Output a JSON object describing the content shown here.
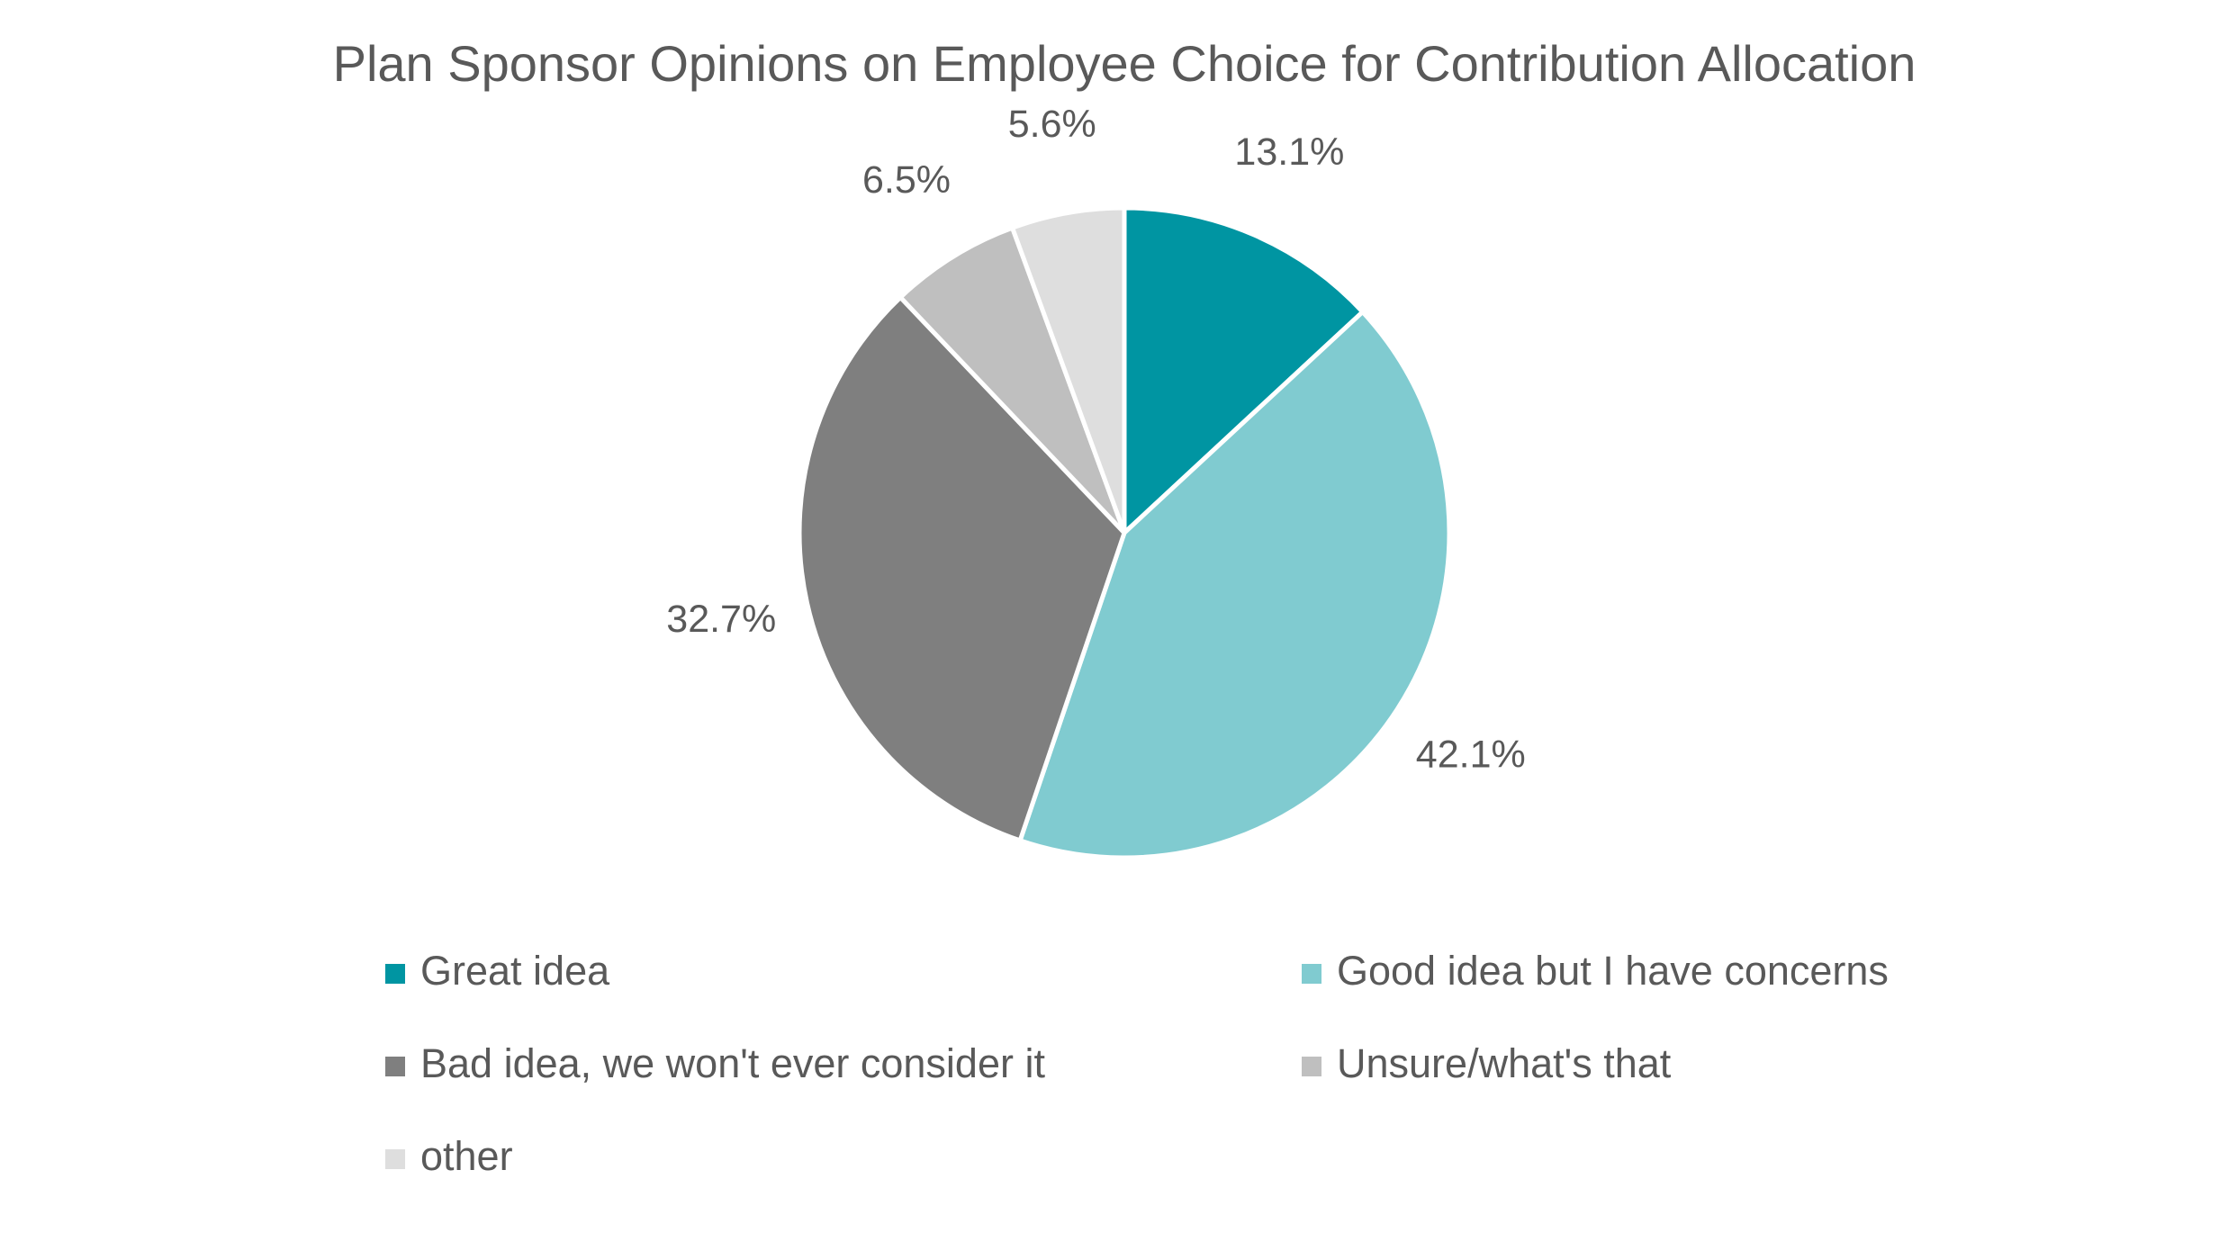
{
  "chart_data": {
    "type": "pie",
    "title": "Plan Sponsor Opinions on Employee Choice for Contribution Allocation",
    "categories": [
      "Great idea",
      "Good idea but I have concerns",
      "Bad idea, we won't ever consider it",
      "Unsure/what's that",
      "other"
    ],
    "values": [
      13.1,
      42.1,
      32.7,
      6.5,
      5.6
    ],
    "value_labels": [
      "13.1%",
      "42.1%",
      "32.7%",
      "6.5%",
      "5.6%"
    ],
    "colors": [
      "#0095a2",
      "#80cbd0",
      "#7f7f7f",
      "#bfbfbf",
      "#dedede"
    ],
    "legend": "bottom"
  }
}
